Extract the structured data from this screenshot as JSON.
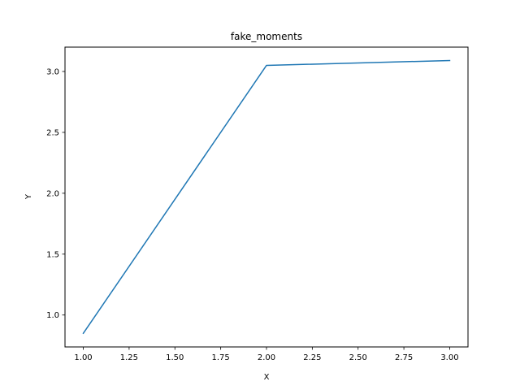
{
  "chart_data": {
    "type": "line",
    "title": "fake_moments",
    "xlabel": "X",
    "ylabel": "Y",
    "xlim": [
      0.9,
      3.1
    ],
    "ylim": [
      0.738,
      3.2
    ],
    "xticks": [
      1.0,
      1.25,
      1.5,
      1.75,
      2.0,
      2.25,
      2.5,
      2.75,
      3.0
    ],
    "xtick_labels": [
      "1.00",
      "1.25",
      "1.50",
      "1.75",
      "2.00",
      "2.25",
      "2.50",
      "2.75",
      "3.00"
    ],
    "yticks": [
      1.0,
      1.5,
      2.0,
      2.5,
      3.0
    ],
    "ytick_labels": [
      "1.0",
      "1.5",
      "2.0",
      "2.5",
      "3.0"
    ],
    "grid": false,
    "series": [
      {
        "x": [
          1.0,
          2.0,
          3.0
        ],
        "y": [
          0.85,
          3.05,
          3.09
        ],
        "color": "#1f77b4"
      }
    ]
  }
}
